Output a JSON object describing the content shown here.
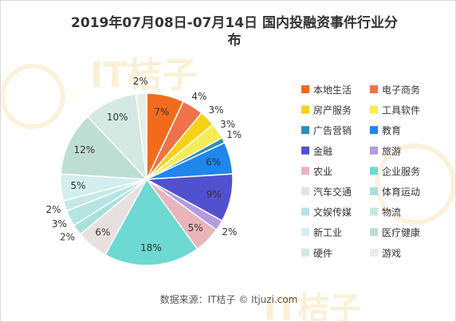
{
  "chart_data": {
    "type": "pie",
    "title_lines": [
      "2019年07月08日-07月14日 国内投融资事件行业分",
      "布"
    ],
    "source": "数据来源：IT桔子 © Itjuzi.com",
    "watermark": "IT桔子",
    "legend_position": "right",
    "slices": [
      {
        "label": "本地生活",
        "value": 7,
        "value_label": "7%",
        "color": "#f26b1d"
      },
      {
        "label": "电子商务",
        "value": 4,
        "value_label": "4%",
        "color": "#f0714a"
      },
      {
        "label": "房产服务",
        "value": 3,
        "value_label": "3%",
        "color": "#f7d117"
      },
      {
        "label": "工具软件",
        "value": 3,
        "value_label": "3%",
        "color": "#f6ec58"
      },
      {
        "label": "广告营销",
        "value": 1,
        "value_label": "1%",
        "color": "#2e8fae"
      },
      {
        "label": "教育",
        "value": 6,
        "value_label": "6%",
        "color": "#1f86ec"
      },
      {
        "label": "金融",
        "value": 9,
        "value_label": "9%",
        "color": "#5151d0"
      },
      {
        "label": "旅游",
        "value": 2,
        "value_label": "2%",
        "color": "#b49ae0"
      },
      {
        "label": "农业",
        "value": 5,
        "value_label": "5%",
        "color": "#eab4bb"
      },
      {
        "label": "企业服务",
        "value": 18,
        "value_label": "18%",
        "color": "#6ed8d2"
      },
      {
        "label": "汽车交通",
        "value": 6,
        "value_label": "6%",
        "color": "#e8e0df"
      },
      {
        "label": "体育运动",
        "value": 2,
        "value_label": "2%",
        "color": "#a8e0dc"
      },
      {
        "label": "文娱传媒",
        "value": 3,
        "value_label": "3%",
        "color": "#b5e4e4"
      },
      {
        "label": "物流",
        "value": 2,
        "value_label": "2%",
        "color": "#c6e9e7"
      },
      {
        "label": "新工业",
        "value": 5,
        "value_label": "5%",
        "color": "#d2eeef"
      },
      {
        "label": "医疗健康",
        "value": 12,
        "value_label": "12%",
        "color": "#bfded3"
      },
      {
        "label": "硬件",
        "value": 10,
        "value_label": "10%",
        "color": "#d3e9e1"
      },
      {
        "label": "游戏",
        "value": 2,
        "value_label": "2%",
        "color": "#e6efe6"
      }
    ]
  }
}
